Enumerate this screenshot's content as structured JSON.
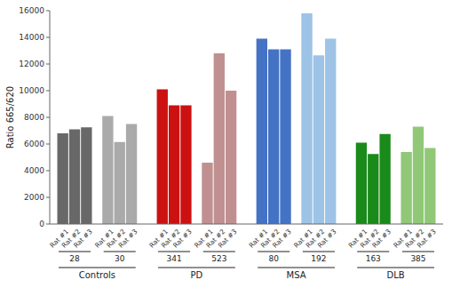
{
  "chart_data": {
    "type": "bar",
    "ylabel": "Ratio 665/620",
    "categories": [
      "Rat #1",
      "Rat #2",
      "Rat #3"
    ],
    "groups": [
      {
        "name": "Controls",
        "series": [
          {
            "name": "28",
            "color": "#686868",
            "values": [
              6800,
              7100,
              7250
            ]
          },
          {
            "name": "30",
            "color": "#aaaaaa",
            "values": [
              8100,
              6150,
              7500
            ]
          }
        ]
      },
      {
        "name": "PD",
        "series": [
          {
            "name": "341",
            "color": "#cc1111",
            "values": [
              10100,
              8900,
              8900
            ]
          },
          {
            "name": "523",
            "color": "#c09090",
            "values": [
              4600,
              12800,
              10000
            ]
          }
        ]
      },
      {
        "name": "MSA",
        "series": [
          {
            "name": "80",
            "color": "#4472c4",
            "values": [
              13900,
              13100,
              13100
            ]
          },
          {
            "name": "192",
            "color": "#9dc3e6",
            "values": [
              15800,
              12650,
              13900
            ]
          }
        ]
      },
      {
        "name": "DLB",
        "series": [
          {
            "name": "163",
            "color": "#1a8a1a",
            "values": [
              6100,
              5250,
              6750
            ]
          },
          {
            "name": "385",
            "color": "#90c878",
            "values": [
              5400,
              7300,
              5700
            ]
          }
        ]
      }
    ],
    "ylim": [
      0,
      16000
    ],
    "yticks": [
      0,
      2000,
      4000,
      6000,
      8000,
      10000,
      12000,
      14000,
      16000
    ],
    "grid": false
  }
}
